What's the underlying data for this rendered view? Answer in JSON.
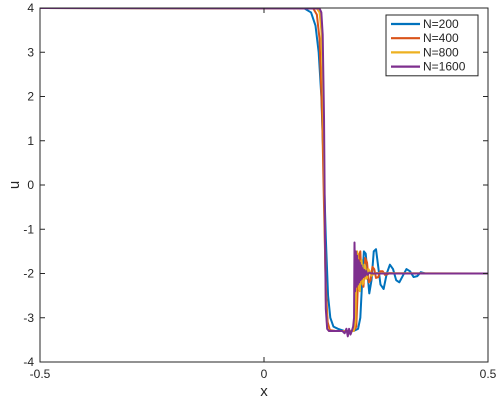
{
  "chart_data": {
    "type": "line",
    "title": "",
    "xlabel": "x",
    "ylabel": "u",
    "xlim": [
      -0.5,
      0.5
    ],
    "ylim": [
      -4,
      4
    ],
    "xticks": [
      "-0.5",
      "0",
      "0.5"
    ],
    "yticks": [
      "-4",
      "-3",
      "-2",
      "-1",
      "0",
      "1",
      "2",
      "3",
      "4"
    ],
    "grid": false,
    "legend_position": "top-right",
    "series": [
      {
        "name": "N=200",
        "color": "#0072bd",
        "x": [
          -0.5,
          0.09,
          0.105,
          0.115,
          0.122,
          0.128,
          0.133,
          0.138,
          0.143,
          0.148,
          0.155,
          0.165,
          0.18,
          0.2,
          0.21,
          0.215,
          0.219,
          0.223,
          0.227,
          0.231,
          0.235,
          0.24,
          0.245,
          0.25,
          0.255,
          0.26,
          0.267,
          0.274,
          0.281,
          0.288,
          0.295,
          0.302,
          0.31,
          0.318,
          0.326,
          0.334,
          0.342,
          0.35,
          0.36,
          0.5
        ],
        "y": [
          4.0,
          3.99,
          3.9,
          3.6,
          3.0,
          2.0,
          0.5,
          -1.2,
          -2.5,
          -3.0,
          -3.2,
          -3.25,
          -3.3,
          -3.3,
          -3.25,
          -3.0,
          -2.2,
          -1.5,
          -1.55,
          -2.0,
          -2.45,
          -2.15,
          -1.5,
          -1.45,
          -1.85,
          -2.25,
          -2.35,
          -2.0,
          -1.8,
          -1.9,
          -2.15,
          -2.2,
          -2.05,
          -1.9,
          -1.95,
          -2.08,
          -2.06,
          -1.97,
          -2.0,
          -2.0
        ]
      },
      {
        "name": "N=400",
        "color": "#d95319",
        "x": [
          -0.5,
          0.11,
          0.118,
          0.124,
          0.13,
          0.134,
          0.138,
          0.142,
          0.147,
          0.16,
          0.2,
          0.206,
          0.209,
          0.212,
          0.215,
          0.218,
          0.222,
          0.226,
          0.23,
          0.234,
          0.238,
          0.242,
          0.246,
          0.25,
          0.255,
          0.26,
          0.265,
          0.27,
          0.275,
          0.28,
          0.29,
          0.5
        ],
        "y": [
          4.0,
          3.99,
          3.85,
          3.3,
          1.5,
          -0.5,
          -2.3,
          -3.1,
          -3.28,
          -3.3,
          -3.3,
          -3.2,
          -2.4,
          -1.6,
          -1.5,
          -2.2,
          -2.3,
          -1.65,
          -1.75,
          -2.2,
          -2.15,
          -1.85,
          -1.9,
          -2.1,
          -2.08,
          -1.95,
          -1.95,
          -2.03,
          -2.02,
          -1.99,
          -2.0,
          -2.0
        ]
      },
      {
        "name": "N=800",
        "color": "#edb120",
        "x": [
          -0.5,
          0.118,
          0.124,
          0.128,
          0.132,
          0.135,
          0.138,
          0.141,
          0.145,
          0.16,
          0.2,
          0.204,
          0.206,
          0.208,
          0.21,
          0.212,
          0.214,
          0.216,
          0.218,
          0.22,
          0.222,
          0.224,
          0.226,
          0.228,
          0.23,
          0.233,
          0.236,
          0.24,
          0.244,
          0.25,
          0.5
        ],
        "y": [
          4.0,
          3.99,
          3.9,
          3.5,
          2.0,
          -0.5,
          -2.6,
          -3.2,
          -3.3,
          -3.3,
          -3.3,
          -3.1,
          -2.1,
          -1.5,
          -1.65,
          -2.35,
          -2.4,
          -1.75,
          -1.7,
          -2.25,
          -2.2,
          -1.8,
          -1.85,
          -2.12,
          -2.1,
          -1.9,
          -1.95,
          -2.05,
          -2.02,
          -1.99,
          -2.0
        ]
      },
      {
        "name": "N=1600",
        "color": "#7e2f8e",
        "x": [
          -0.5,
          0.124,
          0.128,
          0.131,
          0.134,
          0.136,
          0.138,
          0.141,
          0.145,
          0.15,
          0.175,
          0.18,
          0.184,
          0.187,
          0.19,
          0.193,
          0.196,
          0.199,
          0.201,
          0.202,
          0.2035,
          0.205,
          0.2065,
          0.208,
          0.2095,
          0.211,
          0.2125,
          0.214,
          0.2155,
          0.217,
          0.2185,
          0.22,
          0.222,
          0.224,
          0.226,
          0.228,
          0.231,
          0.235,
          0.24,
          0.5
        ],
        "y": [
          4.0,
          3.99,
          3.9,
          3.4,
          1.5,
          -1.0,
          -2.8,
          -3.25,
          -3.3,
          -3.3,
          -3.3,
          -3.35,
          -3.25,
          -3.42,
          -3.25,
          -3.38,
          -3.3,
          -3.2,
          -3.0,
          -1.3,
          -2.4,
          -1.5,
          -2.3,
          -1.6,
          -2.25,
          -1.7,
          -2.2,
          -1.75,
          -2.15,
          -1.82,
          -2.12,
          -1.88,
          -2.08,
          -1.92,
          -2.05,
          -1.95,
          -2.03,
          -1.98,
          -2.0,
          -2.0
        ]
      }
    ]
  }
}
